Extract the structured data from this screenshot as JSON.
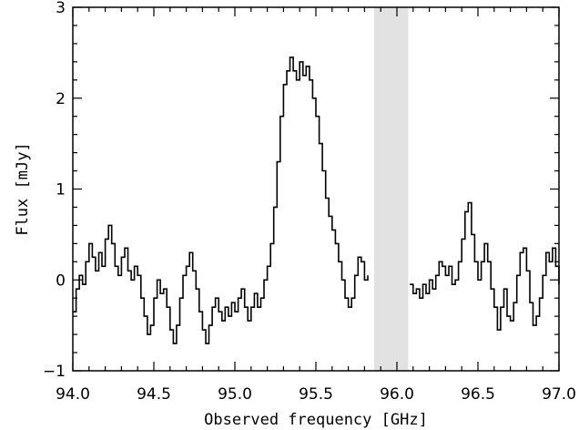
{
  "chart_data": {
    "type": "line",
    "line_style": "step",
    "xlabel": "Observed frequency [GHz]",
    "ylabel": "Flux [mJy]",
    "xlim": [
      94.0,
      97.0
    ],
    "ylim": [
      -1.0,
      3.0
    ],
    "x_ticks": [
      94.0,
      94.5,
      95.0,
      95.5,
      96.0,
      96.5,
      97.0
    ],
    "x_tick_labels": [
      "94.0",
      "94.5",
      "95.0",
      "95.5",
      "96.0",
      "96.5",
      "97.0"
    ],
    "y_ticks": [
      -1,
      0,
      1,
      2,
      3
    ],
    "y_tick_labels": [
      "−1",
      "0",
      "1",
      "2",
      "3"
    ],
    "grid": false,
    "shaded_band": {
      "x_start": 95.86,
      "x_end": 96.07,
      "color": "#e2e2e2"
    },
    "series": [
      {
        "color": "#000000",
        "points": [
          [
            94.0,
            -0.35
          ],
          [
            94.02,
            -0.1
          ],
          [
            94.04,
            0.05
          ],
          [
            94.06,
            -0.05
          ],
          [
            94.08,
            0.2
          ],
          [
            94.1,
            0.4
          ],
          [
            94.12,
            0.25
          ],
          [
            94.14,
            0.1
          ],
          [
            94.16,
            0.3
          ],
          [
            94.18,
            0.15
          ],
          [
            94.2,
            0.45
          ],
          [
            94.22,
            0.6
          ],
          [
            94.24,
            0.4
          ],
          [
            94.26,
            0.15
          ],
          [
            94.28,
            0.05
          ],
          [
            94.3,
            0.25
          ],
          [
            94.32,
            0.35
          ],
          [
            94.34,
            0.1
          ],
          [
            94.36,
            0.0
          ],
          [
            94.38,
            0.15
          ],
          [
            94.4,
            0.05
          ],
          [
            94.42,
            -0.2
          ],
          [
            94.44,
            -0.4
          ],
          [
            94.46,
            -0.6
          ],
          [
            94.48,
            -0.5
          ],
          [
            94.5,
            -0.2
          ],
          [
            94.52,
            0.0
          ],
          [
            94.54,
            -0.15
          ],
          [
            94.56,
            -0.1
          ],
          [
            94.58,
            -0.3
          ],
          [
            94.6,
            -0.55
          ],
          [
            94.62,
            -0.7
          ],
          [
            94.64,
            -0.5
          ],
          [
            94.66,
            -0.2
          ],
          [
            94.68,
            0.05
          ],
          [
            94.7,
            0.15
          ],
          [
            94.72,
            0.3
          ],
          [
            94.74,
            0.1
          ],
          [
            94.76,
            -0.1
          ],
          [
            94.78,
            -0.35
          ],
          [
            94.8,
            -0.55
          ],
          [
            94.82,
            -0.7
          ],
          [
            94.84,
            -0.5
          ],
          [
            94.86,
            -0.3
          ],
          [
            94.88,
            -0.2
          ],
          [
            94.9,
            -0.35
          ],
          [
            94.92,
            -0.45
          ],
          [
            94.94,
            -0.3
          ],
          [
            94.96,
            -0.4
          ],
          [
            94.98,
            -0.25
          ],
          [
            95.0,
            -0.35
          ],
          [
            95.02,
            -0.2
          ],
          [
            95.04,
            -0.1
          ],
          [
            95.06,
            -0.3
          ],
          [
            95.08,
            -0.45
          ],
          [
            95.1,
            -0.3
          ],
          [
            95.12,
            -0.15
          ],
          [
            95.14,
            -0.3
          ],
          [
            95.16,
            -0.2
          ],
          [
            95.18,
            0.0
          ],
          [
            95.2,
            0.15
          ],
          [
            95.22,
            0.4
          ],
          [
            95.24,
            0.8
          ],
          [
            95.26,
            1.3
          ],
          [
            95.28,
            1.8
          ],
          [
            95.3,
            2.15
          ],
          [
            95.32,
            2.3
          ],
          [
            95.34,
            2.45
          ],
          [
            95.36,
            2.3
          ],
          [
            95.38,
            2.2
          ],
          [
            95.4,
            2.4
          ],
          [
            95.42,
            2.25
          ],
          [
            95.44,
            2.35
          ],
          [
            95.46,
            2.2
          ],
          [
            95.48,
            2.0
          ],
          [
            95.5,
            1.8
          ],
          [
            95.52,
            1.5
          ],
          [
            95.54,
            1.2
          ],
          [
            95.56,
            0.9
          ],
          [
            95.58,
            0.7
          ],
          [
            95.6,
            0.55
          ],
          [
            95.62,
            0.4
          ],
          [
            95.64,
            0.2
          ],
          [
            95.66,
            0.0
          ],
          [
            95.68,
            -0.2
          ],
          [
            95.7,
            -0.3
          ],
          [
            95.72,
            -0.2
          ],
          [
            95.74,
            0.05
          ],
          [
            95.76,
            0.25
          ],
          [
            95.78,
            0.2
          ],
          [
            95.8,
            0.0
          ],
          [
            95.82,
            0.05
          ]
        ]
      },
      {
        "color": "#000000",
        "points": [
          [
            96.08,
            -0.05
          ],
          [
            96.1,
            -0.15
          ],
          [
            96.12,
            -0.1
          ],
          [
            96.14,
            -0.2
          ],
          [
            96.16,
            -0.05
          ],
          [
            96.18,
            -0.15
          ],
          [
            96.2,
            0.0
          ],
          [
            96.22,
            -0.1
          ],
          [
            96.24,
            0.05
          ],
          [
            96.26,
            0.2
          ],
          [
            96.28,
            0.15
          ],
          [
            96.3,
            0.05
          ],
          [
            96.32,
            0.15
          ],
          [
            96.34,
            -0.05
          ],
          [
            96.36,
            0.0
          ],
          [
            96.38,
            0.2
          ],
          [
            96.4,
            0.45
          ],
          [
            96.42,
            0.75
          ],
          [
            96.44,
            0.85
          ],
          [
            96.46,
            0.5
          ],
          [
            96.48,
            0.2
          ],
          [
            96.5,
            0.0
          ],
          [
            96.52,
            0.2
          ],
          [
            96.54,
            0.4
          ],
          [
            96.56,
            0.2
          ],
          [
            96.58,
            -0.1
          ],
          [
            96.6,
            -0.3
          ],
          [
            96.62,
            -0.55
          ],
          [
            96.64,
            -0.3
          ],
          [
            96.66,
            -0.1
          ],
          [
            96.68,
            -0.4
          ],
          [
            96.7,
            -0.45
          ],
          [
            96.72,
            -0.25
          ],
          [
            96.74,
            0.05
          ],
          [
            96.76,
            0.3
          ],
          [
            96.78,
            0.35
          ],
          [
            96.8,
            0.1
          ],
          [
            96.82,
            -0.25
          ],
          [
            96.84,
            -0.5
          ],
          [
            96.86,
            -0.4
          ],
          [
            96.88,
            -0.2
          ],
          [
            96.9,
            0.05
          ],
          [
            96.92,
            0.3
          ],
          [
            96.94,
            0.2
          ],
          [
            96.96,
            0.35
          ],
          [
            96.98,
            0.15
          ],
          [
            97.0,
            -0.05
          ]
        ]
      }
    ]
  }
}
